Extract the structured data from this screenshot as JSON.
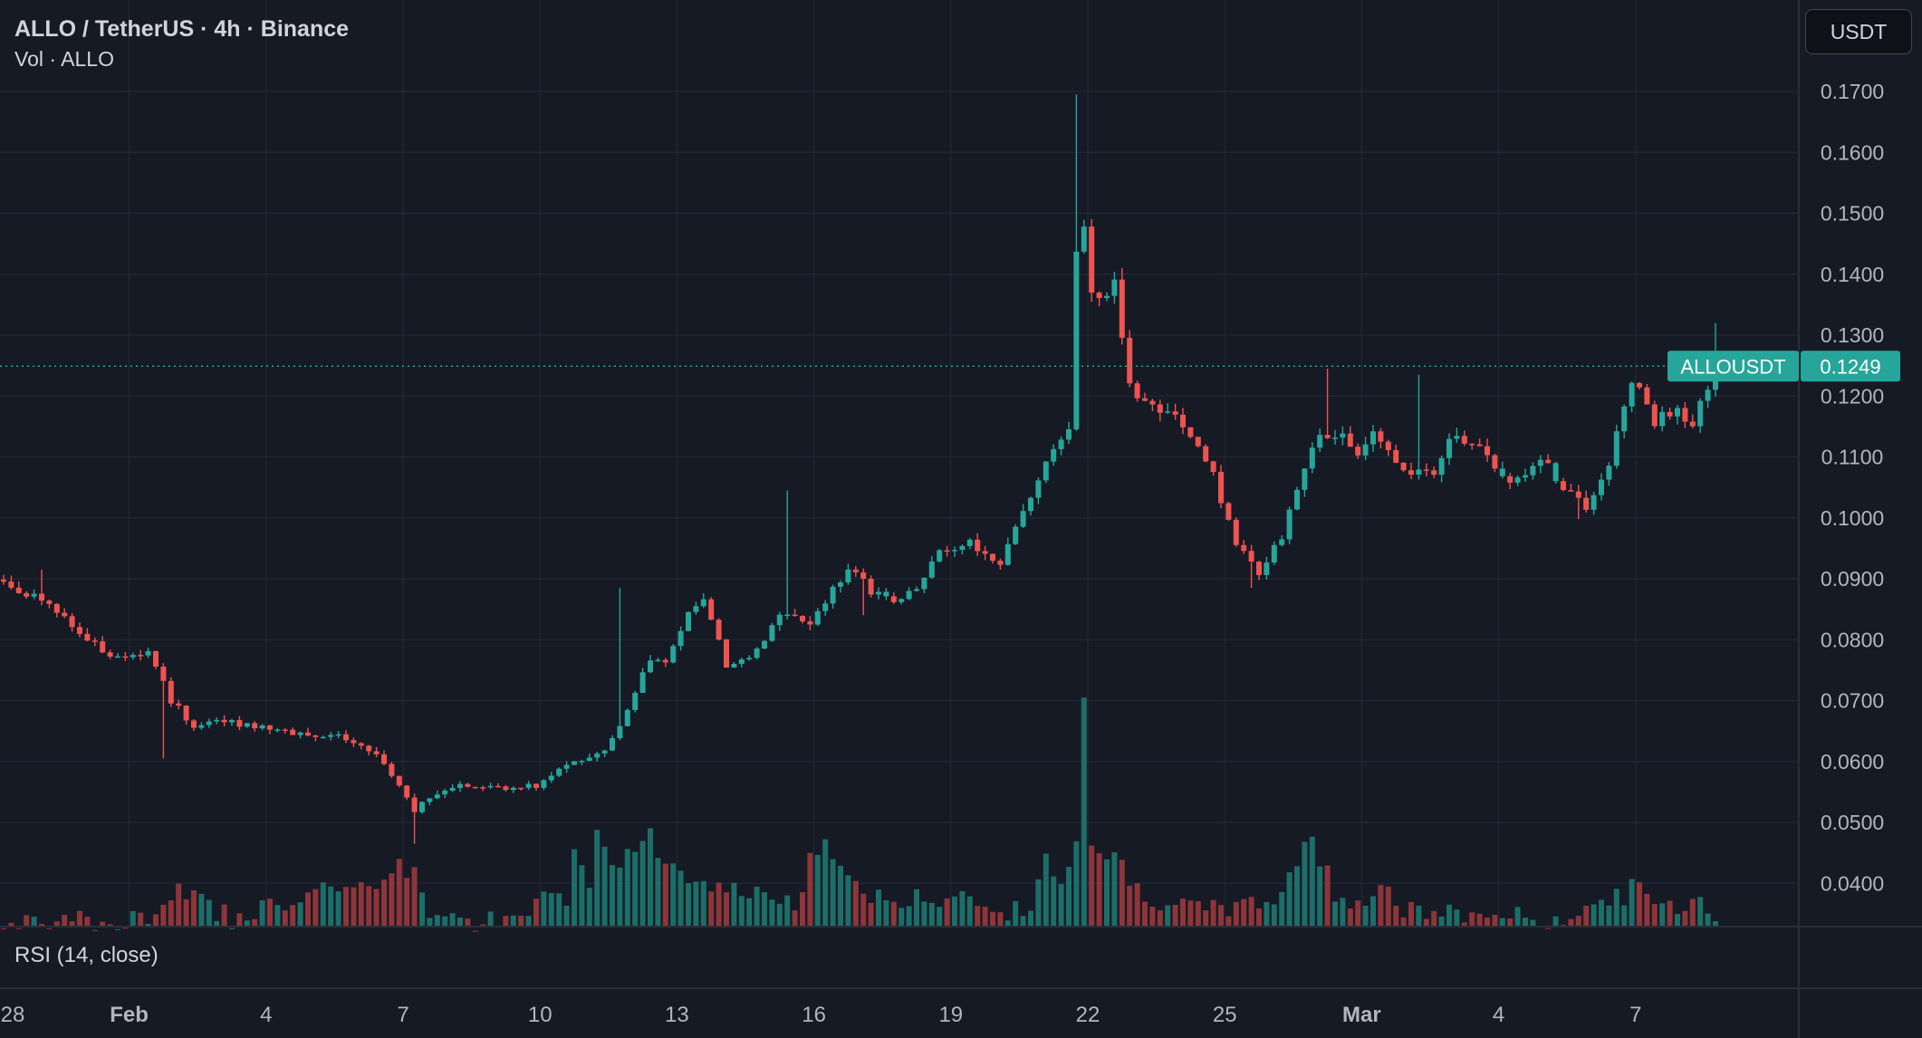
{
  "header": {
    "title": "ALLO / TetherUS · 4h · Binance",
    "volume_label": "Vol · ALLO",
    "currency_button": "USDT"
  },
  "rsi_pane": {
    "label": "RSI (14, close)"
  },
  "price_tag": {
    "symbol": "ALLOUSDT",
    "value": "0.1249"
  },
  "colors": {
    "background": "#161a25",
    "grid": "#242a38",
    "up": "#26a69a",
    "down": "#ef5350",
    "volume_up": "#1c6e68",
    "volume_down": "#8e3539",
    "text": "#d1d4dc",
    "axis_text": "#b2b5be"
  },
  "chart_data": {
    "type": "candlestick",
    "symbol": "ALLOUSDT",
    "interval": "4h",
    "last_price": 0.1249,
    "ylim": [
      0.0328,
      0.1768
    ],
    "y_ticks": [
      "0.0400",
      "0.0500",
      "0.0600",
      "0.0700",
      "0.0800",
      "0.0900",
      "0.1000",
      "0.1100",
      "0.1200",
      "0.1300",
      "0.1400",
      "0.1500",
      "0.1600",
      "0.1700"
    ],
    "x_ticks": [
      {
        "label": "28",
        "bar": -1.5,
        "bold": false
      },
      {
        "label": "Feb",
        "bar": 16.5,
        "bold": true
      },
      {
        "label": "4",
        "bar": 34.5,
        "bold": false
      },
      {
        "label": "7",
        "bar": 52.5,
        "bold": false
      },
      {
        "label": "10",
        "bar": 70.5,
        "bold": false
      },
      {
        "label": "13",
        "bar": 88.5,
        "bold": false
      },
      {
        "label": "16",
        "bar": 106.5,
        "bold": false
      },
      {
        "label": "19",
        "bar": 124.5,
        "bold": false
      },
      {
        "label": "22",
        "bar": 142.5,
        "bold": false
      },
      {
        "label": "25",
        "bar": 160.5,
        "bold": false
      },
      {
        "label": "Mar",
        "bar": 178.5,
        "bold": true
      },
      {
        "label": "4",
        "bar": 196.5,
        "bold": false
      },
      {
        "label": "7",
        "bar": 214.5,
        "bold": false
      }
    ],
    "volume_max": 0.0705,
    "close_path": [
      [
        0,
        0.0895
      ],
      [
        6,
        0.0855
      ],
      [
        10,
        0.081
      ],
      [
        14,
        0.0775
      ],
      [
        19,
        0.078
      ],
      [
        22,
        0.07
      ],
      [
        25,
        0.066
      ],
      [
        30,
        0.0665
      ],
      [
        36,
        0.065
      ],
      [
        41,
        0.0645
      ],
      [
        45,
        0.064
      ],
      [
        50,
        0.06
      ],
      [
        54,
        0.052
      ],
      [
        57,
        0.055
      ],
      [
        60,
        0.0565
      ],
      [
        66,
        0.0555
      ],
      [
        70,
        0.056
      ],
      [
        75,
        0.06
      ],
      [
        79,
        0.062
      ],
      [
        82,
        0.068
      ],
      [
        85,
        0.077
      ],
      [
        87,
        0.076
      ],
      [
        90,
        0.084
      ],
      [
        92,
        0.086
      ],
      [
        95,
        0.076
      ],
      [
        98,
        0.077
      ],
      [
        102,
        0.084
      ],
      [
        106,
        0.083
      ],
      [
        111,
        0.092
      ],
      [
        114,
        0.088
      ],
      [
        117,
        0.0865
      ],
      [
        120,
        0.089
      ],
      [
        123,
        0.094
      ],
      [
        127,
        0.0965
      ],
      [
        131,
        0.092
      ],
      [
        134,
        0.101
      ],
      [
        137,
        0.11
      ],
      [
        140,
        0.114
      ],
      [
        141,
        0.144
      ],
      [
        142,
        0.147
      ],
      [
        143,
        0.136
      ],
      [
        146,
        0.138
      ],
      [
        148,
        0.121
      ],
      [
        151,
        0.118
      ],
      [
        154,
        0.116
      ],
      [
        157,
        0.111
      ],
      [
        159,
        0.107
      ],
      [
        162,
        0.096
      ],
      [
        165,
        0.0905
      ],
      [
        168,
        0.097
      ],
      [
        170,
        0.105
      ],
      [
        173,
        0.114
      ],
      [
        176,
        0.114
      ],
      [
        178,
        0.111
      ],
      [
        180,
        0.115
      ],
      [
        184,
        0.107
      ],
      [
        188,
        0.108
      ],
      [
        190,
        0.113
      ],
      [
        194,
        0.1125
      ],
      [
        198,
        0.105
      ],
      [
        202,
        0.11
      ],
      [
        205,
        0.105
      ],
      [
        208,
        0.102
      ],
      [
        211,
        0.109
      ],
      [
        214,
        0.123
      ],
      [
        217,
        0.116
      ],
      [
        220,
        0.118
      ],
      [
        222,
        0.115
      ],
      [
        225,
        0.1249
      ]
    ],
    "volume_path": [
      [
        0,
        0.034
      ],
      [
        20,
        0.035
      ],
      [
        22,
        0.0395
      ],
      [
        30,
        0.035
      ],
      [
        54,
        0.0435
      ],
      [
        56,
        0.036
      ],
      [
        60,
        0.0345
      ],
      [
        68,
        0.0345
      ],
      [
        70,
        0.039
      ],
      [
        74,
        0.0375
      ],
      [
        75,
        0.045
      ],
      [
        77,
        0.042
      ],
      [
        78,
        0.049
      ],
      [
        80,
        0.042
      ],
      [
        83,
        0.047
      ],
      [
        85,
        0.049
      ],
      [
        87,
        0.042
      ],
      [
        89,
        0.043
      ],
      [
        92,
        0.04
      ],
      [
        95,
        0.039
      ],
      [
        98,
        0.04
      ],
      [
        100,
        0.038
      ],
      [
        104,
        0.037
      ],
      [
        106,
        0.045
      ],
      [
        108,
        0.046
      ],
      [
        111,
        0.043
      ],
      [
        114,
        0.038
      ],
      [
        118,
        0.038
      ],
      [
        120,
        0.039
      ],
      [
        123,
        0.037
      ],
      [
        127,
        0.038
      ],
      [
        132,
        0.036
      ],
      [
        135,
        0.037
      ],
      [
        137,
        0.044
      ],
      [
        140,
        0.042
      ],
      [
        141,
        0.05
      ],
      [
        142,
        0.0705
      ],
      [
        143,
        0.048
      ],
      [
        146,
        0.046
      ],
      [
        148,
        0.041
      ],
      [
        151,
        0.0385
      ],
      [
        154,
        0.037
      ],
      [
        157,
        0.036
      ],
      [
        162,
        0.037
      ],
      [
        166,
        0.037
      ],
      [
        168,
        0.04
      ],
      [
        170,
        0.045
      ],
      [
        172,
        0.048
      ],
      [
        175,
        0.039
      ],
      [
        178,
        0.038
      ],
      [
        182,
        0.04
      ],
      [
        184,
        0.036
      ],
      [
        192,
        0.0355
      ],
      [
        205,
        0.035
      ],
      [
        208,
        0.037
      ],
      [
        212,
        0.038
      ],
      [
        214,
        0.04
      ],
      [
        218,
        0.037
      ],
      [
        221,
        0.037
      ],
      [
        223,
        0.039
      ],
      [
        225,
        0.035
      ]
    ],
    "spikes": [
      {
        "bar": 1,
        "high": 0.0905
      },
      {
        "bar": 5,
        "high": 0.0915
      },
      {
        "bar": 21,
        "low": 0.0605
      },
      {
        "bar": 54,
        "low": 0.0465
      },
      {
        "bar": 81,
        "high": 0.0885
      },
      {
        "bar": 103,
        "high": 0.1045
      },
      {
        "bar": 113,
        "low": 0.084
      },
      {
        "bar": 130,
        "low": 0.0925
      },
      {
        "bar": 141,
        "high": 0.1695
      },
      {
        "bar": 147,
        "high": 0.141
      },
      {
        "bar": 164,
        "low": 0.0885
      },
      {
        "bar": 174,
        "high": 0.1245
      },
      {
        "bar": 186,
        "high": 0.1235
      },
      {
        "bar": 207,
        "low": 0.0998
      },
      {
        "bar": 225,
        "high": 0.132
      }
    ],
    "up_bars_extra": [
      39,
      57,
      75,
      79,
      84,
      86,
      92,
      100,
      116,
      119,
      135,
      140,
      170,
      172,
      197,
      200,
      204,
      209
    ]
  }
}
